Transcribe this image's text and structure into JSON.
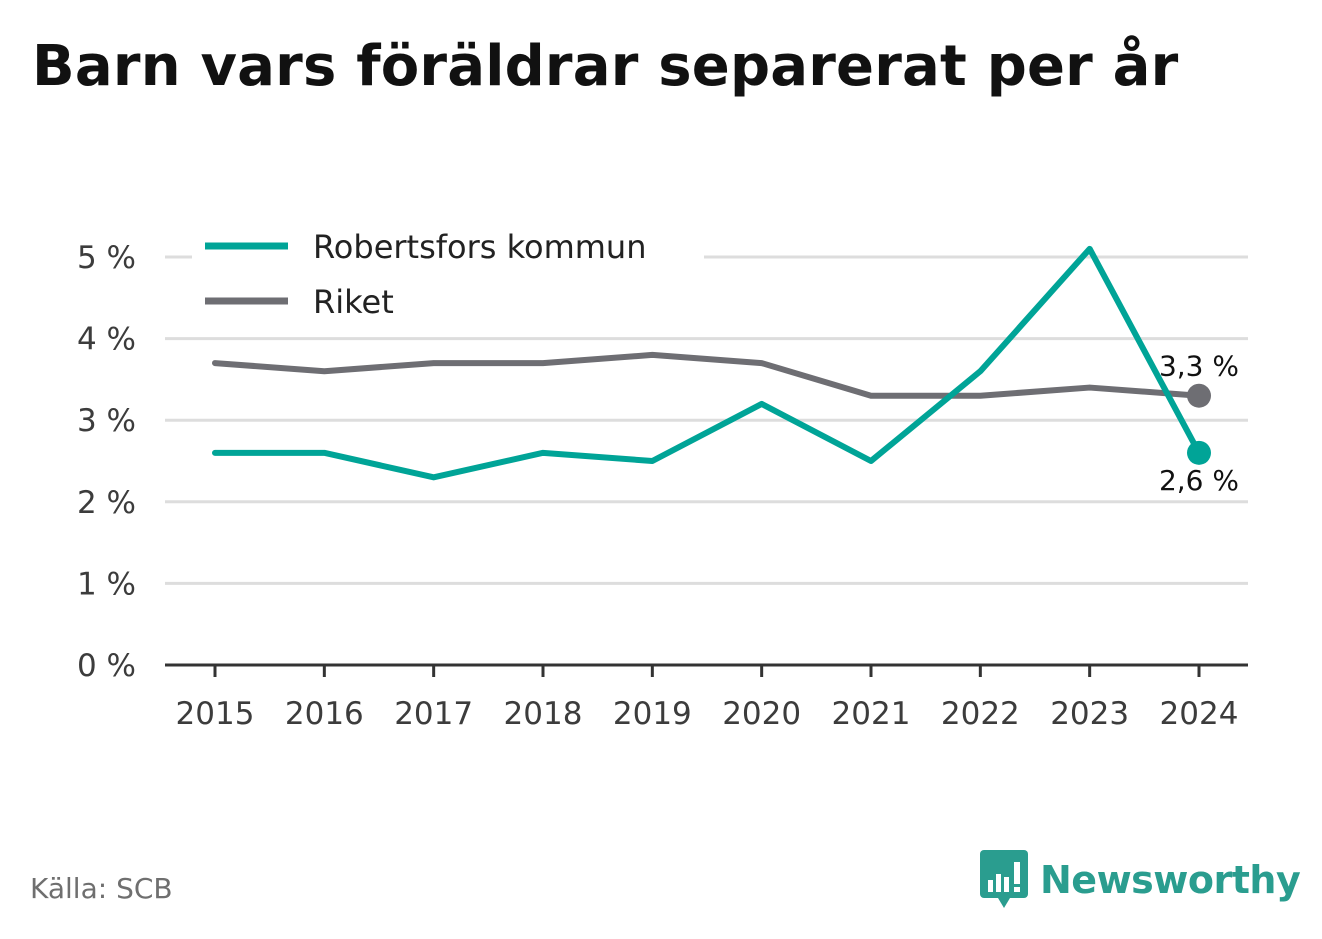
{
  "title": "Barn vars föräldrar separerat per år",
  "source": "Källa: SCB",
  "brand": {
    "name": "Newsworthy",
    "color": "#2a9d8f",
    "icon": "bar-chart-speech-bubble-icon"
  },
  "chart_data": {
    "type": "line",
    "x": [
      "2015",
      "2016",
      "2017",
      "2018",
      "2019",
      "2020",
      "2021",
      "2022",
      "2023",
      "2024"
    ],
    "y_ticks": [
      "0 %",
      "1 %",
      "2 %",
      "3 %",
      "4 %",
      "5 %"
    ],
    "ylim": [
      0,
      5.3
    ],
    "grid": true,
    "legend_position": "top-left",
    "series": [
      {
        "name": "Robertsfors kommun",
        "color": "#00a497",
        "values": [
          2.6,
          2.6,
          2.3,
          2.6,
          2.5,
          3.2,
          2.5,
          3.6,
          5.1,
          2.6
        ],
        "end_label": "2,6 %"
      },
      {
        "name": "Riket",
        "color": "#6e6e73",
        "values": [
          3.7,
          3.6,
          3.7,
          3.7,
          3.8,
          3.7,
          3.3,
          3.3,
          3.4,
          3.3
        ],
        "end_label": "3,3 %"
      }
    ]
  }
}
